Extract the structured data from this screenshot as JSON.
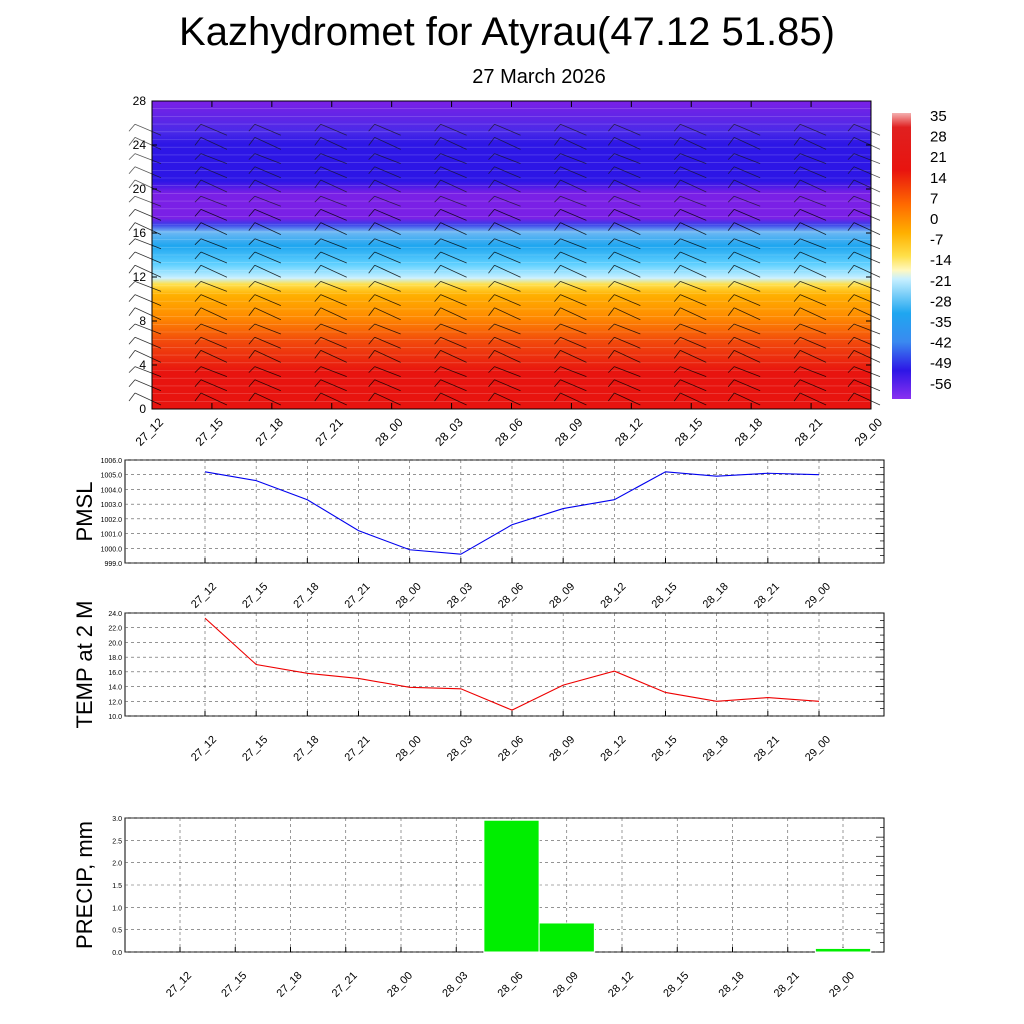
{
  "page": {
    "title": "Kazhydromet for Atyrau(47.12 51.85)",
    "subtitle": "27 March 2026"
  },
  "chart_data": [
    {
      "type": "heatmap",
      "x_ticks": [
        "27_12",
        "27_15",
        "27_18",
        "27_21",
        "28_00",
        "28_03",
        "28_06",
        "28_09",
        "28_12",
        "28_15",
        "28_18",
        "28_21",
        "29_00"
      ],
      "y_ticks": [
        "0",
        "4",
        "8",
        "12",
        "16",
        "20",
        "24",
        "28"
      ],
      "ylim": [
        0,
        28
      ],
      "colorbar_labels": [
        "35",
        "28",
        "21",
        "14",
        "7",
        "0",
        "-7",
        "-14",
        "-21",
        "-28",
        "-35",
        "-42",
        "-49",
        "-56"
      ],
      "colors": {
        "hot": "#e8140f",
        "warm": "#ff8c00",
        "mid": "#ffe04a",
        "cold": "#1fa6f0",
        "coldest": "#2d16e6",
        "purple": "#7a20e6"
      },
      "grid": false
    },
    {
      "type": "line",
      "ylabel": "PMSL",
      "categories": [
        "27_12",
        "27_15",
        "27_18",
        "27_21",
        "28_00",
        "28_03",
        "28_06",
        "28_09",
        "28_12",
        "28_15",
        "28_18",
        "28_21",
        "29_00"
      ],
      "y_ticks": [
        "1006.0",
        "1005.0",
        "1004.0",
        "1003.0",
        "1002.0",
        "1001.0",
        "1000.0",
        "999.0"
      ],
      "ylim": [
        999.0,
        1006.0
      ],
      "series": [
        {
          "values": [
            1005.2,
            1004.6,
            1003.3,
            1001.2,
            999.9,
            999.6,
            1001.6,
            1002.7,
            1003.3,
            1005.2,
            1004.9,
            1005.1,
            1005.0
          ],
          "color": "#0000ee"
        }
      ],
      "grid": true
    },
    {
      "type": "line",
      "ylabel": "TEMP at 2 M",
      "categories": [
        "27_12",
        "27_15",
        "27_18",
        "27_21",
        "28_00",
        "28_03",
        "28_06",
        "28_09",
        "28_12",
        "28_15",
        "28_18",
        "28_21",
        "29_00"
      ],
      "y_ticks": [
        "24.0",
        "22.0",
        "20.0",
        "18.0",
        "16.0",
        "14.0",
        "12.0",
        "10.0"
      ],
      "ylim": [
        10.0,
        24.0
      ],
      "series": [
        {
          "values": [
            23.3,
            17.0,
            15.8,
            15.1,
            13.9,
            13.7,
            10.8,
            14.2,
            16.1,
            13.2,
            12.0,
            12.5,
            12.0
          ],
          "color": "#ee0000"
        }
      ],
      "grid": true
    },
    {
      "type": "bar",
      "ylabel": "PRECIP, mm",
      "categories": [
        "27_12",
        "27_15",
        "27_18",
        "27_21",
        "28_00",
        "28_03",
        "28_06",
        "28_09",
        "28_12",
        "28_15",
        "28_18",
        "28_21",
        "29_00"
      ],
      "y_ticks": [
        "3.0",
        "2.5",
        "2.0",
        "1.5",
        "1.0",
        "0.5",
        "0.0"
      ],
      "ylim": [
        0.0,
        3.0
      ],
      "values": [
        0,
        0,
        0,
        0,
        0,
        0,
        2.95,
        0.65,
        0,
        0,
        0,
        0,
        0.08
      ],
      "color": "#00ee00",
      "grid": true
    }
  ]
}
